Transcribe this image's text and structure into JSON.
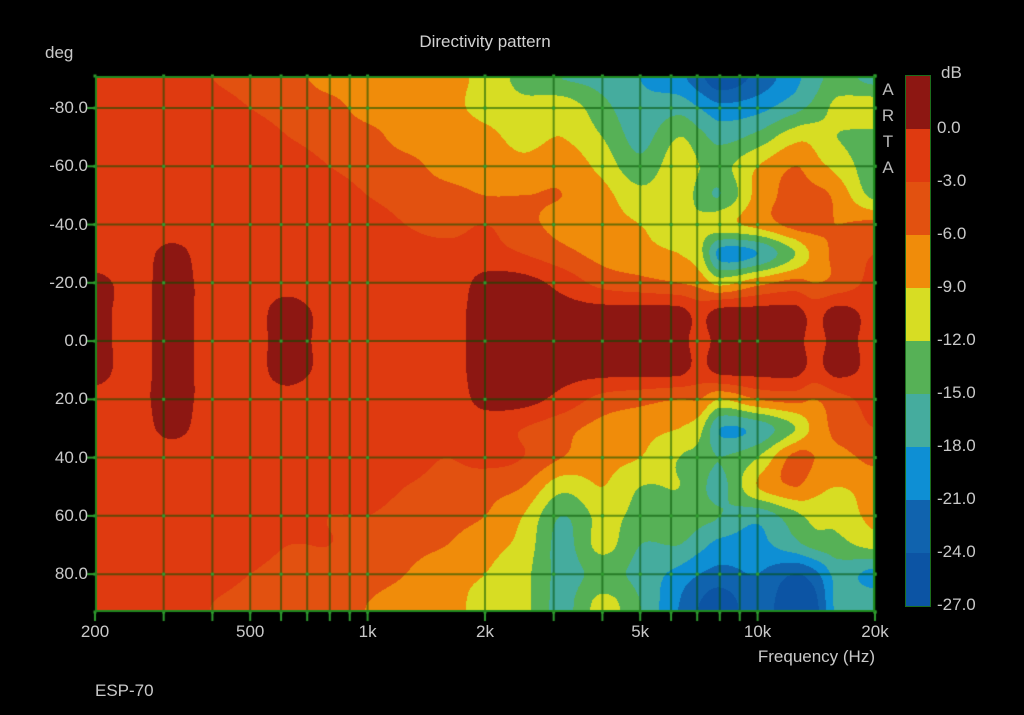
{
  "header": {
    "title": "Directivity pattern"
  },
  "axes": {
    "y_unit": "deg",
    "x_label": "Frequency (Hz)",
    "y_tick_labels": [
      "-80.0",
      "-60.0",
      "-40.0",
      "-20.0",
      "0.0",
      "20.0",
      "40.0",
      "60.0",
      "80.0"
    ],
    "y_tick_values": [
      -80,
      -60,
      -40,
      -20,
      0,
      20,
      40,
      60,
      80
    ],
    "x_tick_labels": [
      "200",
      "500",
      "1k",
      "2k",
      "5k",
      "10k",
      "20k"
    ],
    "x_tick_values": [
      200,
      500,
      1000,
      2000,
      5000,
      10000,
      20000
    ],
    "x_gridlines_hz": [
      300,
      400,
      500,
      600,
      700,
      800,
      900,
      1000,
      2000,
      3000,
      4000,
      5000,
      6000,
      7000,
      8000,
      9000,
      10000,
      20000
    ]
  },
  "colorbar": {
    "unit": "dB",
    "tick_labels": [
      "0.0",
      "-3.0",
      "-6.0",
      "-9.0",
      "-12.0",
      "-15.0",
      "-18.0",
      "-21.0",
      "-24.0",
      "-27.0"
    ],
    "segment_colors": [
      "#8D1712",
      "#DF3A10",
      "#E25110",
      "#F08C0A",
      "#D7DD23",
      "#56B156",
      "#45AC9E",
      "#0E8FD4",
      "#1063AE",
      "#0C54A4"
    ]
  },
  "watermark": {
    "text": "ARTA"
  },
  "footer": {
    "label": "ESP-70"
  },
  "style": {
    "text_color": "#c9c9c9",
    "grid_color_rgba": [
      0,
      80,
      0,
      0.55
    ],
    "grid_dot_color": "#2f9b2f",
    "border_color": "#1f8a1f",
    "tick_color": "#2f9b2f",
    "background": "#000000"
  },
  "chart_data": {
    "type": "heatmap",
    "title": "Directivity pattern",
    "xlabel": "Frequency (Hz)",
    "ylabel": "deg",
    "x_scale": "log",
    "x_range_hz": [
      200,
      20000
    ],
    "y_range_deg": [
      -91,
      93
    ],
    "z_unit": "dB",
    "z_bands_db": {
      "max": 0,
      "min": -27,
      "step": 3,
      "note": "values >= 0 render as the top dark-red band"
    },
    "grid": true,
    "legend_position": "right-colorbar",
    "frequencies_hz": [
      200,
      250,
      315,
      400,
      500,
      630,
      800,
      1000,
      1250,
      1600,
      2000,
      2500,
      3150,
      4000,
      5000,
      6300,
      7100,
      8000,
      10000,
      12500,
      14000,
      16000,
      20000
    ],
    "angles_deg": [
      -90,
      -80,
      -70,
      -60,
      -50,
      -40,
      -30,
      -20,
      -10,
      0,
      10,
      20,
      30,
      40,
      50,
      60,
      70,
      80,
      90
    ],
    "values_db": [
      [
        -2,
        -2,
        -2,
        -3,
        -4,
        -5,
        -7,
        -7,
        -8,
        -8,
        -10,
        -13,
        -15,
        -16,
        -18,
        -20,
        -23,
        -26,
        -23,
        -19,
        -16,
        -14,
        -16
      ],
      [
        -2,
        -2,
        -2,
        -2,
        -3,
        -4,
        -5,
        -7,
        -7,
        -8,
        -10,
        -11,
        -10,
        -14,
        -17,
        -16,
        -18,
        -20,
        -19,
        -16,
        -14,
        -11,
        -10
      ],
      [
        -2,
        -2,
        -2,
        -2,
        -2,
        -3,
        -4,
        -5,
        -7,
        -7,
        -8,
        -10,
        -9,
        -12,
        -16,
        -12,
        -14,
        -16,
        -14,
        -10,
        -10,
        -12,
        -13
      ],
      [
        -2,
        -2,
        -2,
        -2,
        -2,
        -2,
        -3,
        -4,
        -5,
        -7,
        -7,
        -8,
        -7,
        -10,
        -14,
        -10,
        -12,
        -13,
        -9,
        -6,
        -8,
        -10,
        -14
      ],
      [
        -2,
        -2,
        -2,
        -2,
        -2,
        -2,
        -2,
        -3,
        -4,
        -5,
        -6,
        -6,
        -6,
        -8,
        -11,
        -10,
        -13,
        -15,
        -8,
        -5,
        -5,
        -7,
        -13
      ],
      [
        -2,
        -2,
        -2,
        -2,
        -2,
        -2,
        -2,
        -2,
        -3,
        -4,
        -3,
        -5,
        -7,
        -8,
        -9,
        -11,
        -11,
        -10,
        -8,
        -5,
        -5,
        -6,
        -5
      ],
      [
        -2,
        -2,
        1,
        -2,
        -2,
        -2,
        -2,
        -2,
        -2,
        -2,
        -2,
        -3,
        -5,
        -7,
        -8,
        -9,
        -11,
        -19,
        -18,
        -12,
        -8,
        -5,
        -3
      ],
      [
        1,
        -1,
        1,
        -1,
        -1,
        -1,
        -2,
        -2,
        -2,
        -2,
        1,
        1,
        -1,
        -4,
        -5,
        -6,
        -7,
        -10,
        -7,
        -5,
        -6,
        -5,
        -2
      ],
      [
        1,
        -1,
        1,
        -1,
        -1,
        1,
        -1,
        -1,
        -1,
        -1,
        1,
        1,
        1,
        1,
        1,
        1,
        -1,
        1,
        1,
        1,
        -1,
        1,
        -1
      ],
      [
        1,
        -1,
        1,
        -1,
        -1,
        1,
        -1,
        -1,
        -1,
        -1,
        1,
        1,
        1,
        1,
        1,
        1,
        -1,
        1,
        1,
        1,
        -1,
        1,
        -1
      ],
      [
        1,
        -1,
        1,
        -1,
        -1,
        1,
        -1,
        -1,
        -1,
        -1,
        1,
        1,
        1,
        1,
        1,
        1,
        -1,
        1,
        1,
        1,
        -1,
        1,
        -1
      ],
      [
        -1,
        -1,
        1,
        -1,
        -1,
        -1,
        -2,
        -2,
        -2,
        -2,
        1,
        1,
        -1,
        -4,
        -5,
        -6,
        -6,
        -9,
        -6,
        -5,
        -6,
        -4,
        -2
      ],
      [
        -2,
        -2,
        1,
        -2,
        -2,
        -2,
        -2,
        -2,
        -2,
        -2,
        -2,
        -3,
        -5,
        -7,
        -8,
        -9,
        -11,
        -18,
        -17,
        -12,
        -8,
        -5,
        -3
      ],
      [
        -2,
        -2,
        -2,
        -2,
        -2,
        -2,
        -2,
        -2,
        -2,
        -3,
        -2,
        -3,
        -6,
        -8,
        -9,
        -12,
        -13,
        -15,
        -12,
        -5,
        -6,
        -7,
        -5
      ],
      [
        -2,
        -2,
        -2,
        -2,
        -2,
        -2,
        -2,
        -2,
        -3,
        -4,
        -5,
        -6,
        -11,
        -9,
        -12,
        -12,
        -14,
        -16,
        -9,
        -6,
        -8,
        -9,
        -8
      ],
      [
        -2,
        -2,
        -2,
        -2,
        -2,
        -2,
        -3,
        -3,
        -4,
        -5,
        -6,
        -9,
        -15,
        -11,
        -13,
        -13,
        -14,
        -15,
        -17,
        -13,
        -11,
        -11,
        -8
      ],
      [
        -2,
        -2,
        -2,
        -2,
        -2,
        -3,
        -3,
        -4,
        -5,
        -6,
        -8,
        -10,
        -16,
        -11,
        -15,
        -15,
        -17,
        -19,
        -19,
        -16,
        -14,
        -13,
        -11
      ],
      [
        -2,
        -2,
        -2,
        -2,
        -3,
        -4,
        -4,
        -5,
        -6,
        -8,
        -9,
        -11,
        -16,
        -14,
        -16,
        -19,
        -21,
        -22,
        -21,
        -24,
        -22,
        -17,
        -19
      ],
      [
        -2,
        -2,
        -2,
        -3,
        -4,
        -5,
        -5,
        -6,
        -7,
        -8,
        -10,
        -11,
        -16,
        -11,
        -15,
        -21,
        -24,
        -26,
        -22,
        -27,
        -25,
        -17,
        -16
      ]
    ]
  }
}
